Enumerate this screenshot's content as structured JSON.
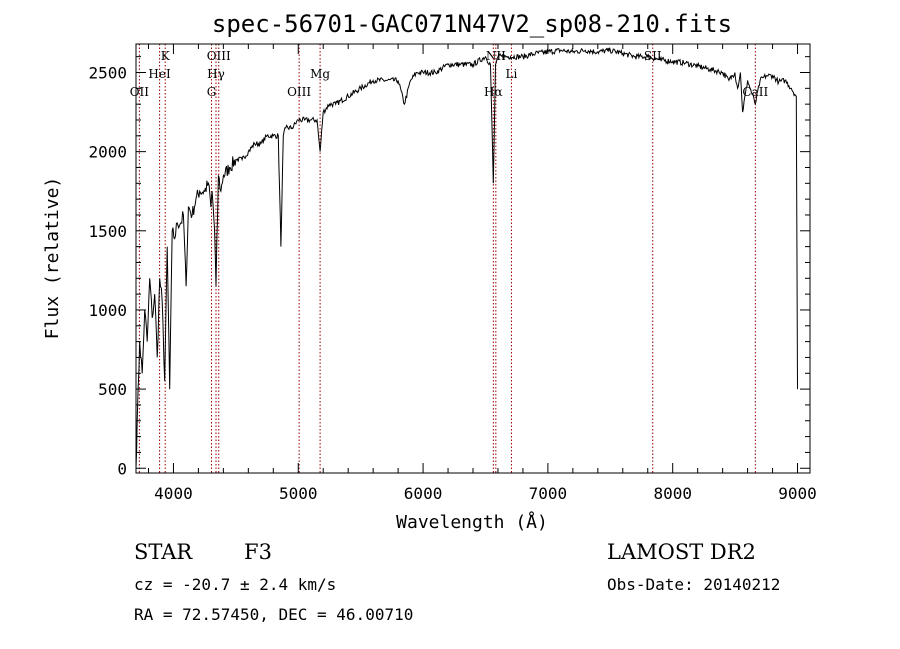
{
  "chart_data": {
    "type": "line",
    "title": "spec-56701-GAC071N47V2_sp08-210.fits",
    "xlabel": "Wavelength (Å)",
    "ylabel": "Flux (relative)",
    "xlim": [
      3700,
      9100
    ],
    "ylim": [
      -30,
      2680
    ],
    "xticks": [
      4000,
      5000,
      6000,
      7000,
      8000,
      9000
    ],
    "yticks": [
      0,
      500,
      1000,
      1500,
      2000,
      2500
    ],
    "grid": false,
    "line_color": "#000000",
    "marker_color": "#990000",
    "lines": [
      {
        "label": "OII",
        "x": 3727,
        "tier": 2
      },
      {
        "label": "K",
        "x": 3934,
        "tier": 0
      },
      {
        "label": "HeI",
        "x": 3889,
        "tier": 1
      },
      {
        "label": "OIII",
        "x": 4363,
        "tier": 0
      },
      {
        "label": "Hγ",
        "x": 4341,
        "tier": 1
      },
      {
        "label": "G",
        "x": 4305,
        "tier": 2
      },
      {
        "label": "OIII",
        "x": 5007,
        "tier": 2
      },
      {
        "label": "Mg",
        "x": 5175,
        "tier": 1
      },
      {
        "label": "NII",
        "x": 6583,
        "tier": 0
      },
      {
        "label": "Li",
        "x": 6708,
        "tier": 1
      },
      {
        "label": "Hα",
        "x": 6563,
        "tier": 2
      },
      {
        "label": "SII",
        "x": 7840,
        "tier": 0
      },
      {
        "label": "CaII",
        "x": 8662,
        "tier": 2
      }
    ],
    "series": [
      {
        "x": [
          3700,
          3710,
          3730,
          3750,
          3770,
          3790,
          3810,
          3830,
          3850,
          3870,
          3890,
          3910,
          3930,
          3950,
          3970,
          3990,
          4010,
          4030,
          4060,
          4080,
          4101,
          4120,
          4150,
          4180,
          4210,
          4250,
          4280,
          4300,
          4310,
          4330,
          4341,
          4360,
          4380,
          4400,
          4450,
          4500,
          4550,
          4600,
          4650,
          4700,
          4750,
          4800,
          4840,
          4861,
          4880,
          4900,
          4950,
          5000,
          5050,
          5100,
          5150,
          5175,
          5200,
          5250,
          5300,
          5400,
          5500,
          5600,
          5700,
          5800,
          5850,
          5900,
          5950,
          6000,
          6100,
          6200,
          6300,
          6400,
          6500,
          6540,
          6563,
          6580,
          6600,
          6700,
          6800,
          6900,
          7000,
          7100,
          7200,
          7300,
          7400,
          7500,
          7600,
          7700,
          7800,
          7900,
          8000,
          8100,
          8200,
          8300,
          8400,
          8450,
          8498,
          8520,
          8542,
          8560,
          8600,
          8662,
          8700,
          8750,
          8800,
          8850,
          8900,
          8950,
          8990,
          9000
        ],
        "y": [
          0,
          300,
          800,
          600,
          1000,
          800,
          1200,
          950,
          1100,
          700,
          1200,
          1050,
          550,
          1400,
          500,
          1500,
          1450,
          1550,
          1550,
          1600,
          1150,
          1650,
          1600,
          1700,
          1750,
          1750,
          1800,
          1650,
          1750,
          1500,
          1150,
          1850,
          1750,
          1850,
          1900,
          1950,
          1950,
          2000,
          2050,
          2050,
          2100,
          2100,
          2100,
          1400,
          2100,
          2150,
          2150,
          2200,
          2200,
          2200,
          2200,
          2000,
          2250,
          2300,
          2300,
          2350,
          2400,
          2450,
          2450,
          2450,
          2300,
          2450,
          2500,
          2500,
          2500,
          2550,
          2550,
          2550,
          2600,
          2550,
          1800,
          2550,
          2600,
          2600,
          2600,
          2620,
          2630,
          2640,
          2630,
          2640,
          2630,
          2640,
          2620,
          2600,
          2600,
          2580,
          2570,
          2560,
          2540,
          2520,
          2500,
          2450,
          2500,
          2400,
          2500,
          2250,
          2450,
          2300,
          2450,
          2480,
          2480,
          2440,
          2450,
          2400,
          2350,
          500
        ]
      }
    ]
  },
  "info": {
    "star_label": "STAR",
    "spec_class": "F3",
    "survey": "LAMOST DR2",
    "cz": "cz = -20.7 ± 2.4 km/s",
    "obs_date": "Obs-Date: 20140212",
    "coords": "RA =  72.57450, DEC =  46.00710"
  }
}
